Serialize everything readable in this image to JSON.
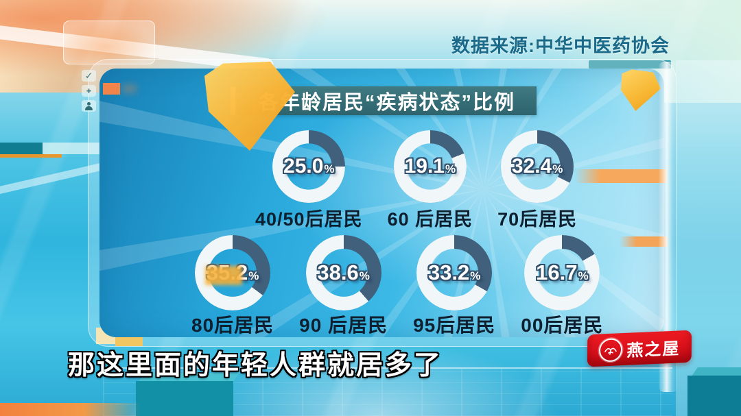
{
  "header": {
    "source": "数据来源:中华中医药协会"
  },
  "side_toolbar": {
    "icons": [
      {
        "name": "check-icon",
        "glyph": "✓"
      },
      {
        "name": "plus-icon",
        "glyph": "+"
      },
      {
        "name": "person-icon",
        "glyph": "person-silhouette"
      }
    ]
  },
  "chart_data": {
    "type": "pie",
    "variant": "donut-grid",
    "title": "各年龄居民“疾病状态”比例",
    "unit": "%",
    "segment_color": "#40607c",
    "ring_color": "#f1f6f8",
    "start_angle": "12-o'clock, clockwise",
    "rows": [
      [
        {
          "label": "40/50后居民",
          "value": 25.0,
          "display": "25.0"
        },
        {
          "label": "60 后居民",
          "value": 19.1,
          "display": "19.1"
        },
        {
          "label": "70后居民",
          "value": 32.4,
          "display": "32.4"
        }
      ],
      [
        {
          "label": "80后居民",
          "value": 35.2,
          "display": "35.2"
        },
        {
          "label": "90 后居民",
          "value": 38.6,
          "display": "38.6"
        },
        {
          "label": "95后居民",
          "value": 33.2,
          "display": "33.2"
        },
        {
          "label": "00后居民",
          "value": 16.7,
          "display": "16.7"
        }
      ]
    ]
  },
  "subtitle": {
    "text": "那这里面的年轻人群就居多了"
  },
  "brand": {
    "name": "燕之屋",
    "badge_color": "#d8101b",
    "logo_icon": "swallow-logo-icon"
  }
}
